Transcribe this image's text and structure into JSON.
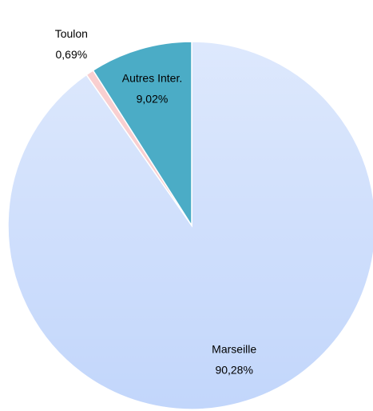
{
  "chart_data": {
    "type": "pie",
    "categories": [
      "Marseille",
      "Toulon",
      "Autres Inter."
    ],
    "values": [
      90.28,
      0.69,
      9.02
    ],
    "value_labels": [
      "90,28%",
      "0,69%",
      "9,02%"
    ],
    "colors": [
      "#c2d6fb",
      "#f9cfd0",
      "#4bacc6"
    ]
  }
}
